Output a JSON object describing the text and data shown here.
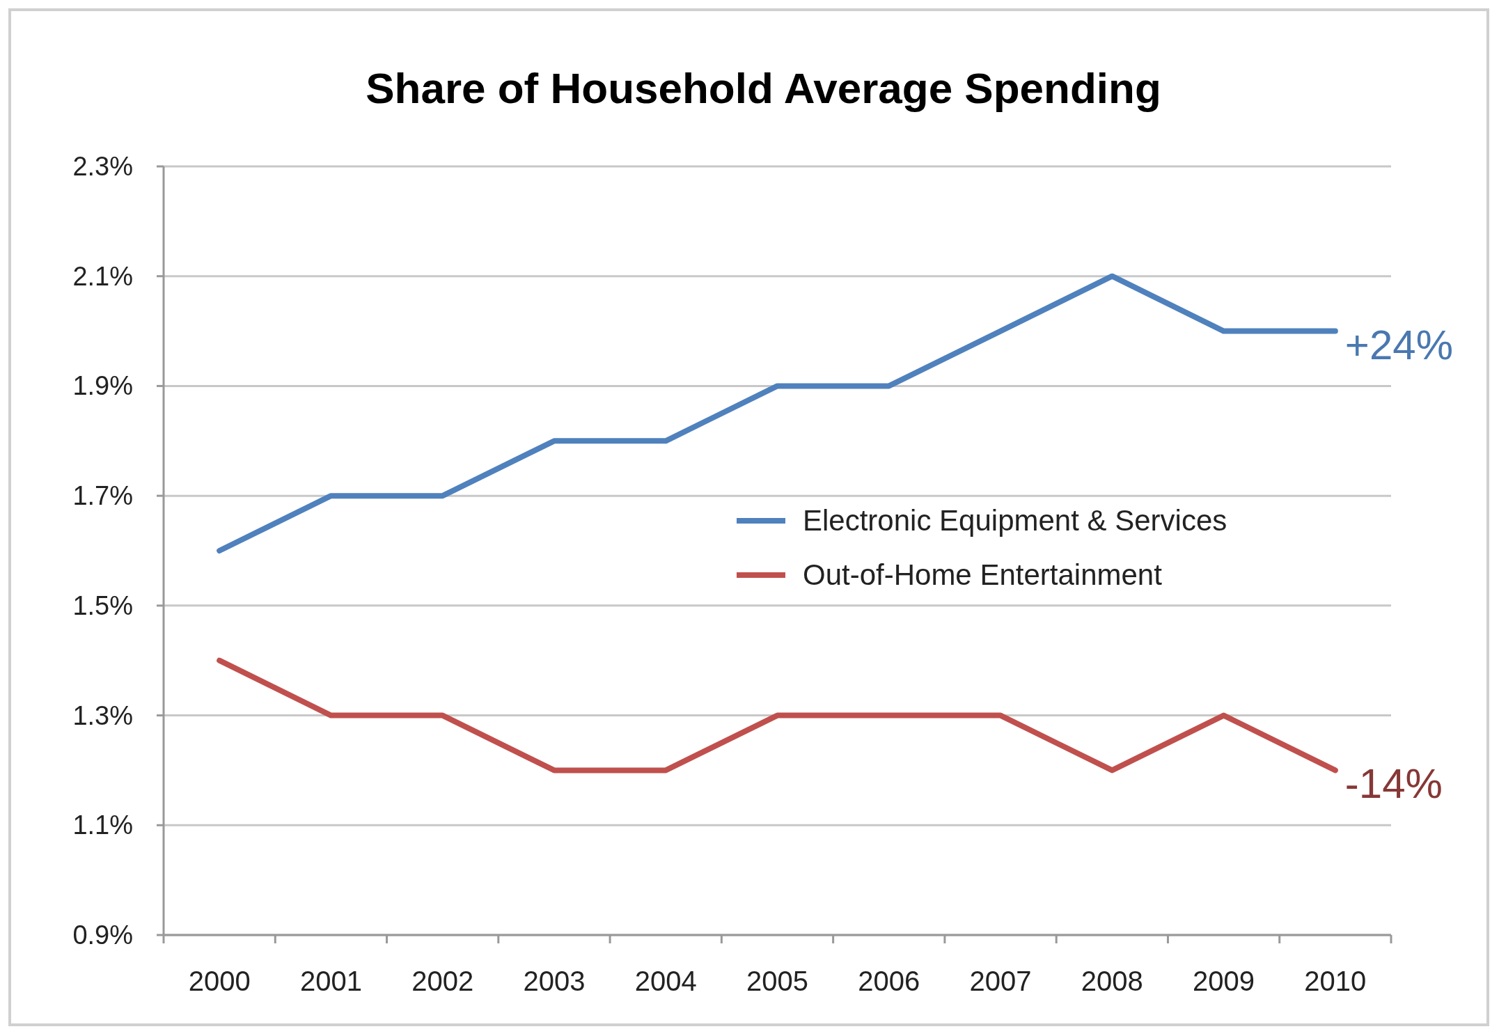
{
  "chart_data": {
    "type": "line",
    "title": "Share of Household Average Spending",
    "categories": [
      "2000",
      "2001",
      "2002",
      "2003",
      "2004",
      "2005",
      "2006",
      "2007",
      "2008",
      "2009",
      "2010"
    ],
    "series": [
      {
        "name": "Electronic Equipment & Services",
        "color": "#4f81bd",
        "values": [
          1.6,
          1.7,
          1.7,
          1.8,
          1.8,
          1.9,
          1.9,
          2.0,
          2.1,
          2.0,
          2.0
        ]
      },
      {
        "name": "Out-of-Home Entertainment",
        "color": "#c0504d",
        "values": [
          1.4,
          1.3,
          1.3,
          1.2,
          1.2,
          1.3,
          1.3,
          1.3,
          1.2,
          1.3,
          1.2
        ]
      }
    ],
    "ylim": [
      0.9,
      2.3
    ],
    "yticks": [
      {
        "value": 0.9,
        "label": "0.9%"
      },
      {
        "value": 1.1,
        "label": "1.1%"
      },
      {
        "value": 1.3,
        "label": "1.3%"
      },
      {
        "value": 1.5,
        "label": "1.5%"
      },
      {
        "value": 1.7,
        "label": "1.7%"
      },
      {
        "value": 1.9,
        "label": "1.9%"
      },
      {
        "value": 2.1,
        "label": "2.1%"
      },
      {
        "value": 2.3,
        "label": "2.3%"
      }
    ],
    "grid": "y",
    "legend": "right",
    "marker": "none",
    "line_style": "solid",
    "annotations": [
      {
        "text": "+24%",
        "x": "2010",
        "y": 2.0
      },
      {
        "text": "-14%",
        "x": "2010",
        "y": 1.2
      }
    ]
  }
}
